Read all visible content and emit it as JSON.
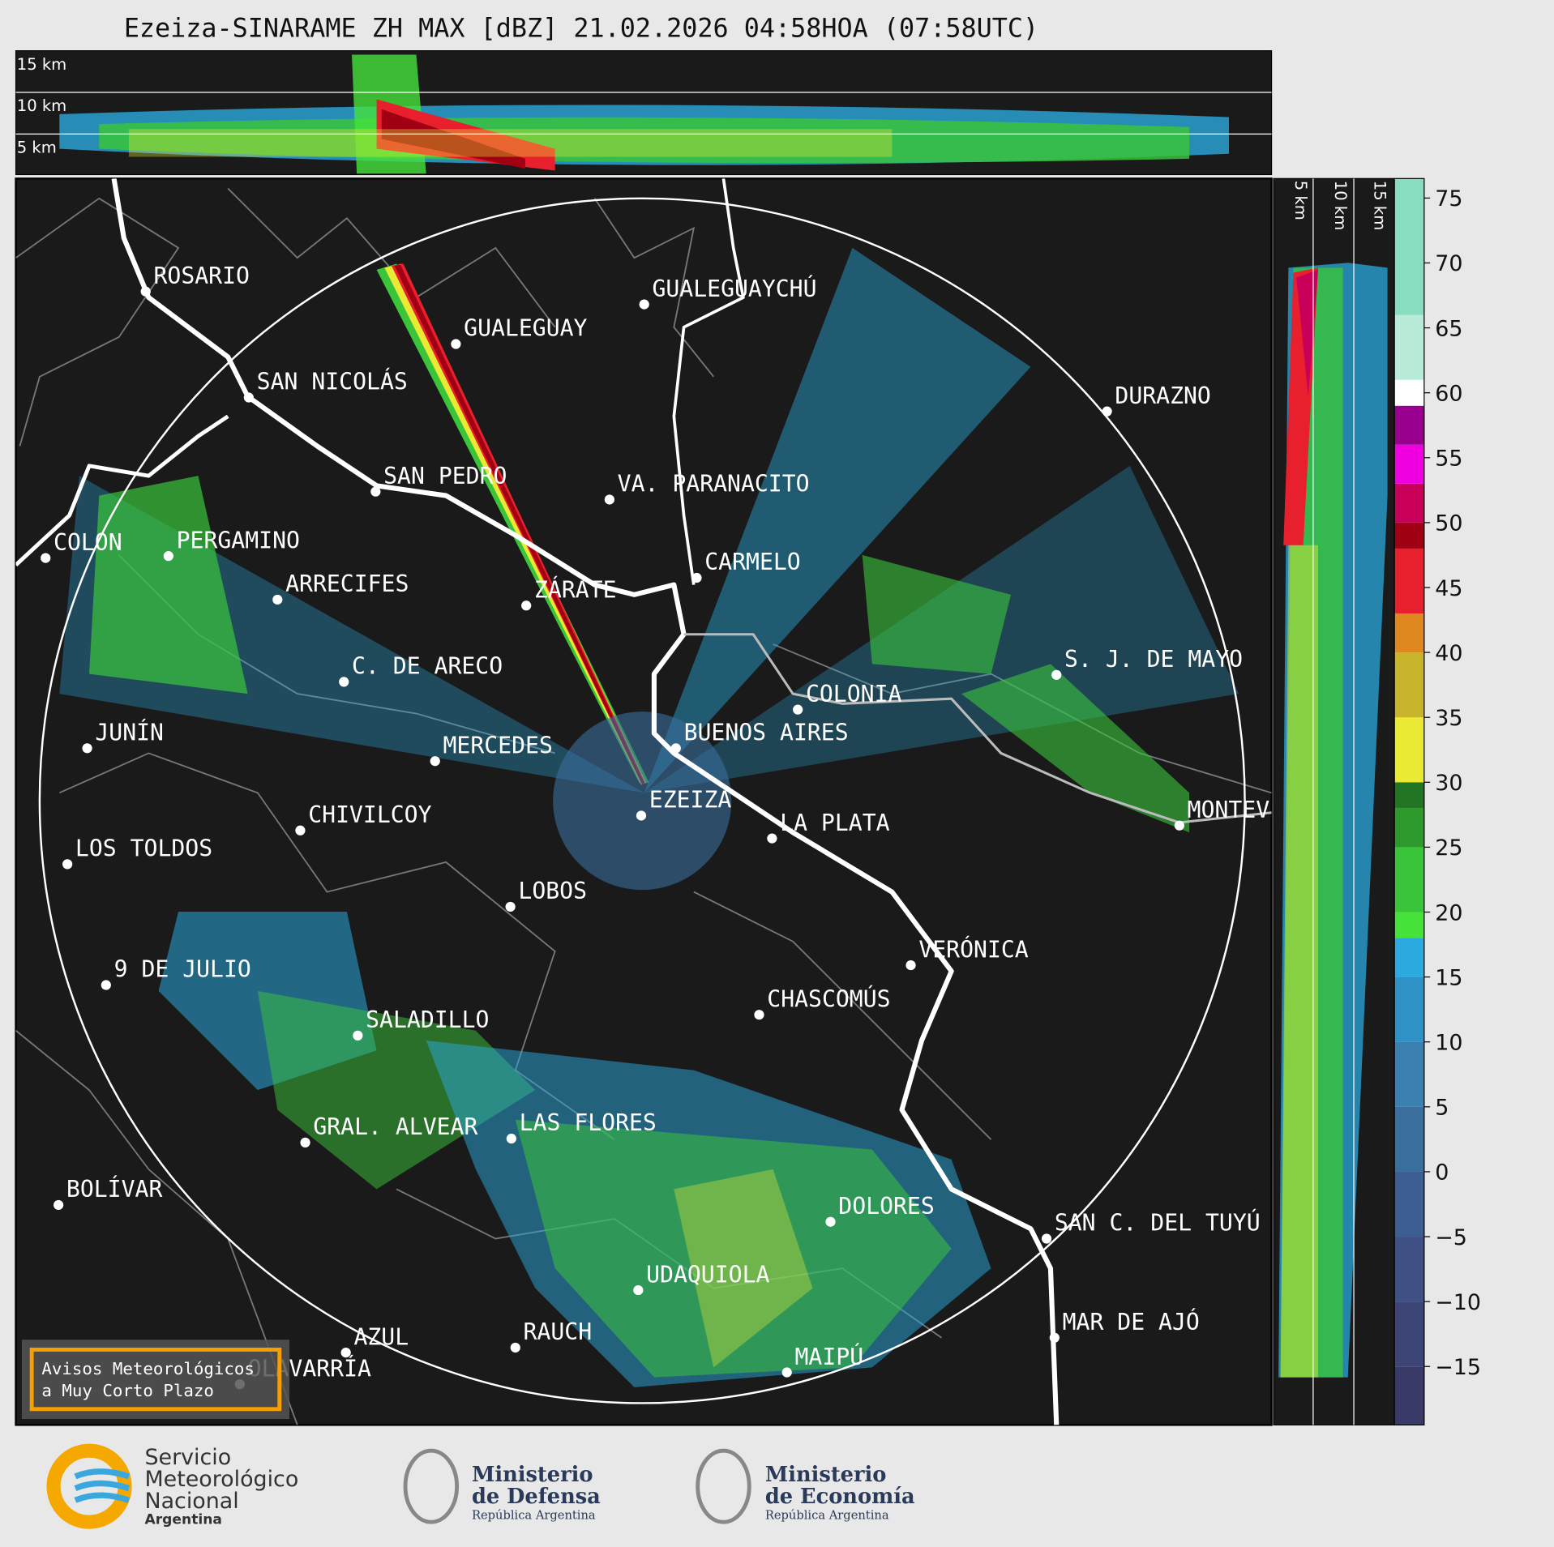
{
  "title": "Ezeiza-SINARAME ZH MAX [dBZ] 21.02.2026 04:58HOA (07:58UTC)",
  "height_panels": {
    "top": [
      "15 km",
      "10 km",
      "5 km"
    ],
    "right": [
      "5 km",
      "10 km",
      "15 km"
    ]
  },
  "cities": [
    "ROSARIO",
    "GUALEGUAYCHÚ",
    "GUALEGUAY",
    "SAN NICOLÁS",
    "DURAZNO",
    "SAN PEDRO",
    "VA. PARANACITO",
    "COLON",
    "PERGAMINO",
    "CARMELO",
    "ARRECIFES",
    "ZÁRATE",
    "S. J. DE MAYO",
    "C. DE ARECO",
    "COLONIA",
    "BUENOS AIRES",
    "JUNÍN",
    "MERCEDES",
    "EZEIZA",
    "MONTEVIDEO",
    "LA PLATA",
    "CHIVILCOY",
    "LOS TOLDOS",
    "LOBOS",
    "VERÓNICA",
    "9 DE JULIO",
    "CHASCOMÚS",
    "SALADILLO",
    "GRAL. ALVEAR",
    "LAS FLORES",
    "BOLÍVAR",
    "DOLORES",
    "SAN C. DEL TUYÚ",
    "UDAQUIOLA",
    "MAR DE AJÓ",
    "RAUCH",
    "AZUL",
    "OLAVARRÍA",
    "MAIPÚ"
  ],
  "colorbar": {
    "ylim": [
      -19.5,
      76.5
    ],
    "yticks": [
      75,
      70,
      65,
      60,
      55,
      50,
      45,
      40,
      35,
      30,
      25,
      20,
      15,
      10,
      5,
      0,
      {
        "value": -5,
        "label": "−5"
      },
      {
        "value": -10,
        "label": "−10"
      },
      {
        "value": -15,
        "label": "−15"
      }
    ],
    "bands": [
      {
        "from": -19.5,
        "to": -15,
        "color": "#3a3a68"
      },
      {
        "from": -15,
        "to": -10,
        "color": "#3d4476"
      },
      {
        "from": -10,
        "to": -5,
        "color": "#3f5084"
      },
      {
        "from": -5,
        "to": 0,
        "color": "#3c5e90"
      },
      {
        "from": 0,
        "to": 5,
        "color": "#3a6e9c"
      },
      {
        "from": 5,
        "to": 10,
        "color": "#3a80b0"
      },
      {
        "from": 10,
        "to": 15,
        "color": "#2f92c6"
      },
      {
        "from": 15,
        "to": 18,
        "color": "#2aaade"
      },
      {
        "from": 18,
        "to": 20,
        "color": "#46e23a"
      },
      {
        "from": 20,
        "to": 25,
        "color": "#3ac43a"
      },
      {
        "from": 25,
        "to": 28,
        "color": "#2e9a2e"
      },
      {
        "from": 28,
        "to": 30,
        "color": "#227522"
      },
      {
        "from": 30,
        "to": 35,
        "color": "#eaea34"
      },
      {
        "from": 35,
        "to": 40,
        "color": "#c8b42a"
      },
      {
        "from": 40,
        "to": 43,
        "color": "#e08820"
      },
      {
        "from": 43,
        "to": 48,
        "color": "#e8202e"
      },
      {
        "from": 48,
        "to": 50,
        "color": "#a00012"
      },
      {
        "from": 50,
        "to": 53,
        "color": "#c8005a"
      },
      {
        "from": 53,
        "to": 56,
        "color": "#f000e0"
      },
      {
        "from": 56,
        "to": 59,
        "color": "#9a0090"
      },
      {
        "from": 59,
        "to": 61,
        "color": "#ffffff"
      },
      {
        "from": 61,
        "to": 66,
        "color": "#b8ecd8"
      },
      {
        "from": 66,
        "to": 76.5,
        "color": "#88dcc0"
      }
    ]
  },
  "warning": [
    "Avisos Meteorológicos",
    "a Muy Corto Plazo"
  ],
  "logos": {
    "smn": [
      "Servicio",
      "Meteorológico",
      "Nacional",
      "Argentina"
    ],
    "defensa": [
      "Ministerio",
      "de Defensa",
      "República Argentina"
    ],
    "economia": [
      "Ministerio",
      "de Economía",
      "República Argentina"
    ]
  }
}
